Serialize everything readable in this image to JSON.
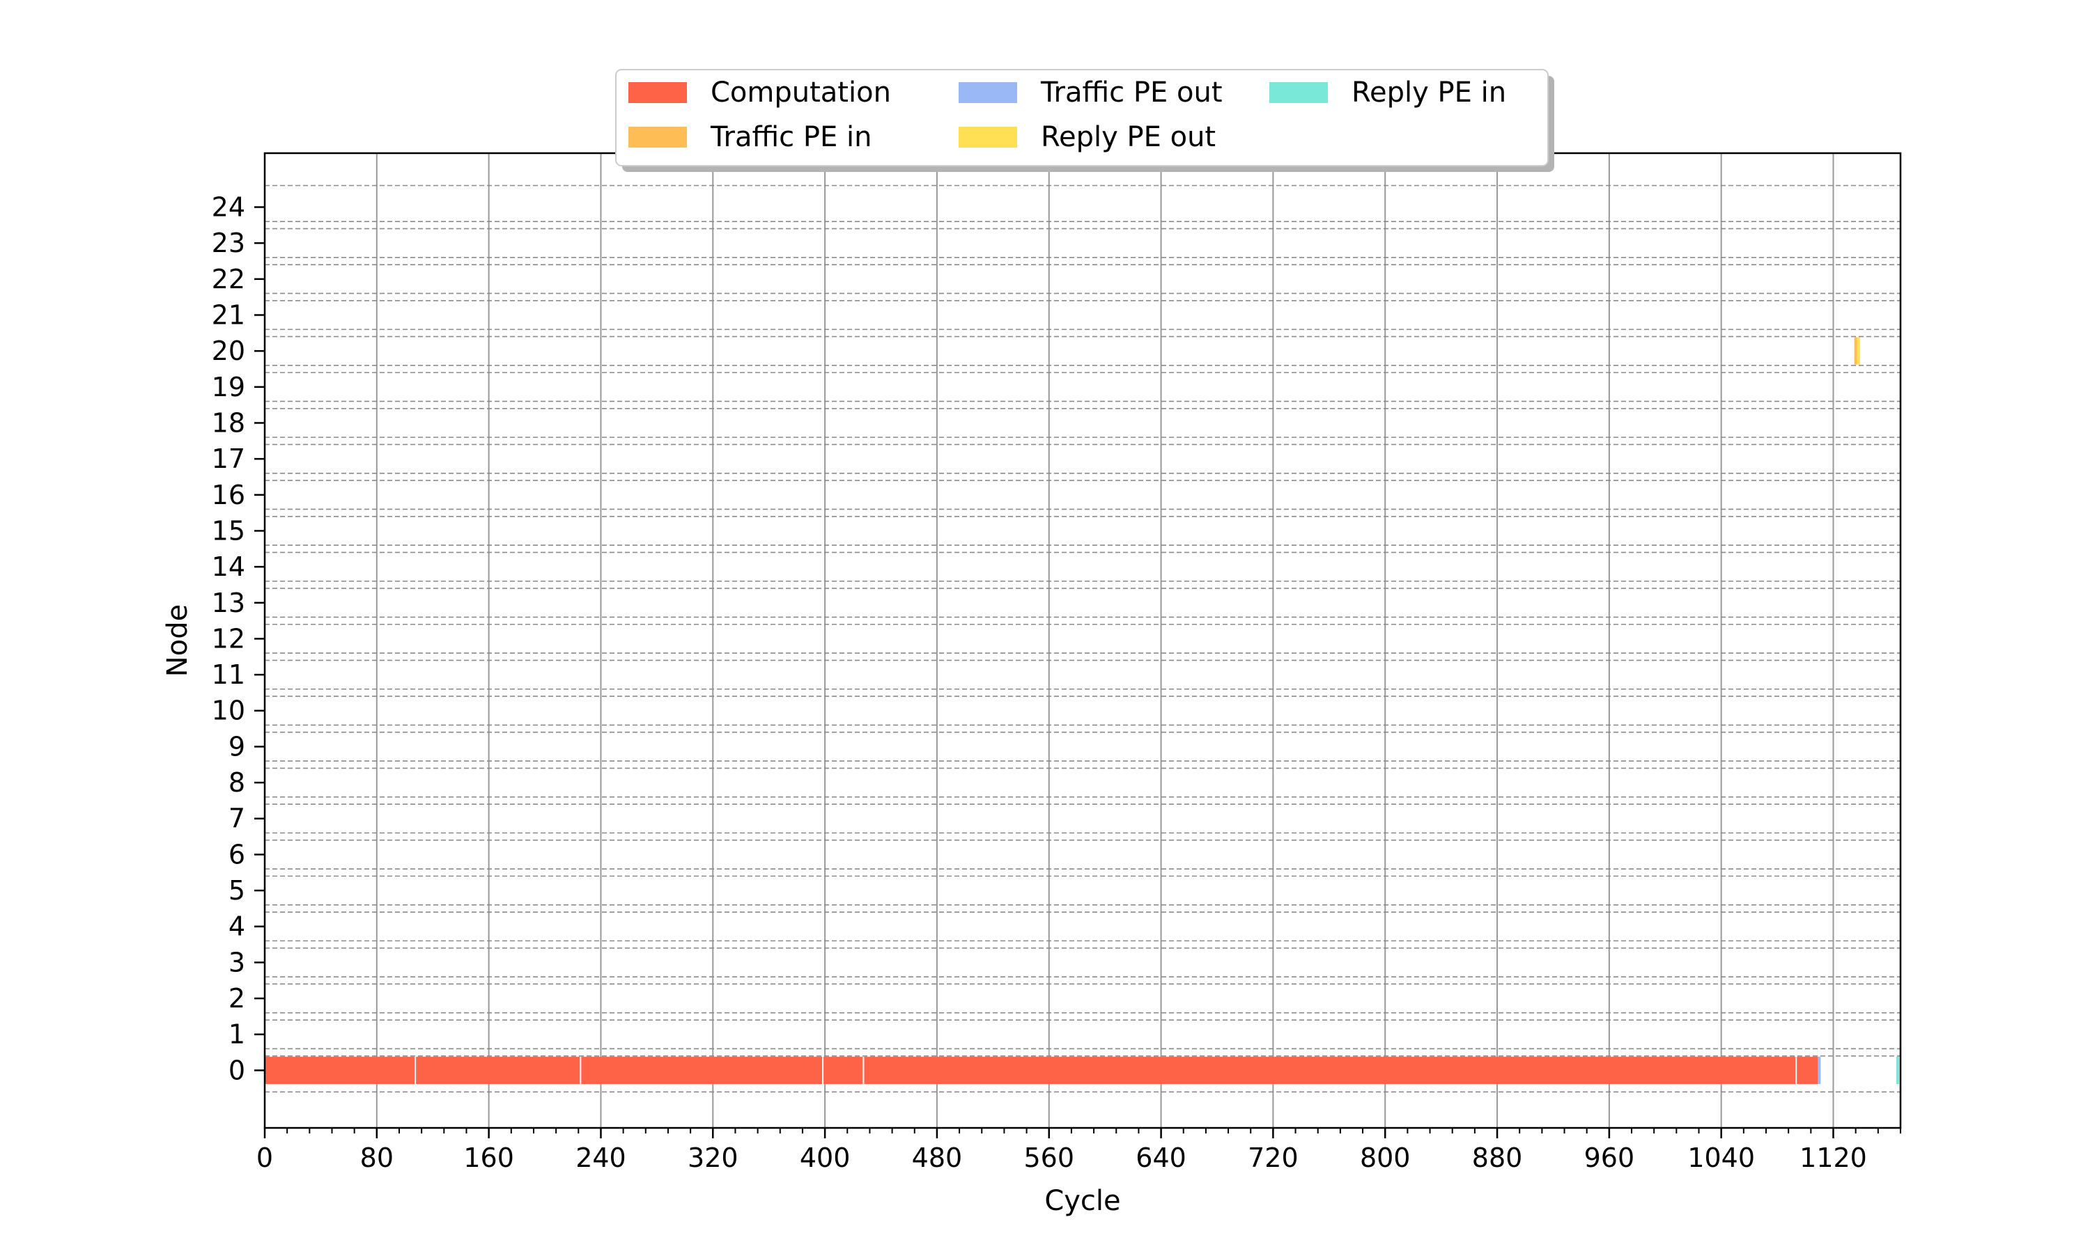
{
  "chart_data": {
    "type": "gantt",
    "xlabel": "Cycle",
    "ylabel": "Node",
    "xlim": [
      0,
      1168
    ],
    "ylim": [
      -1.6,
      25.5
    ],
    "x_major_ticks": [
      0,
      80,
      160,
      240,
      320,
      400,
      480,
      560,
      640,
      720,
      800,
      880,
      960,
      1040,
      1120
    ],
    "x_minor_step": 16,
    "y_ticks": [
      0,
      1,
      2,
      3,
      4,
      5,
      6,
      7,
      8,
      9,
      10,
      11,
      12,
      13,
      14,
      15,
      16,
      17,
      18,
      19,
      20,
      21,
      22,
      23,
      24
    ],
    "x_grid": true,
    "row_separators": "dashed",
    "legend": {
      "placement": "top-center",
      "columns": 3,
      "entries": [
        {
          "label": "Computation",
          "color": "#ff6347"
        },
        {
          "label": "Traffic PE out",
          "color": "#99b8f5"
        },
        {
          "label": "Reply PE in",
          "color": "#79e8d8"
        },
        {
          "label": "Traffic PE in",
          "color": "#ffbe55"
        },
        {
          "label": "Reply PE out",
          "color": "#ffe055"
        }
      ]
    },
    "bars": [
      {
        "category": "Computation",
        "node": 0,
        "start": 0,
        "end": 107
      },
      {
        "category": "Computation",
        "node": 0,
        "start": 108,
        "end": 225
      },
      {
        "category": "Computation",
        "node": 0,
        "start": 226,
        "end": 398
      },
      {
        "category": "Computation",
        "node": 0,
        "start": 399,
        "end": 427
      },
      {
        "category": "Computation",
        "node": 0,
        "start": 428,
        "end": 1093
      },
      {
        "category": "Computation",
        "node": 0,
        "start": 1094,
        "end": 1109
      },
      {
        "category": "Traffic PE out",
        "node": 0,
        "start": 1109,
        "end": 1111
      },
      {
        "category": "Reply PE in",
        "node": 0,
        "start": 1165,
        "end": 1167
      },
      {
        "category": "Traffic PE in",
        "node": 20,
        "start": 1135,
        "end": 1137
      },
      {
        "category": "Reply PE out",
        "node": 20,
        "start": 1137,
        "end": 1139
      }
    ]
  }
}
